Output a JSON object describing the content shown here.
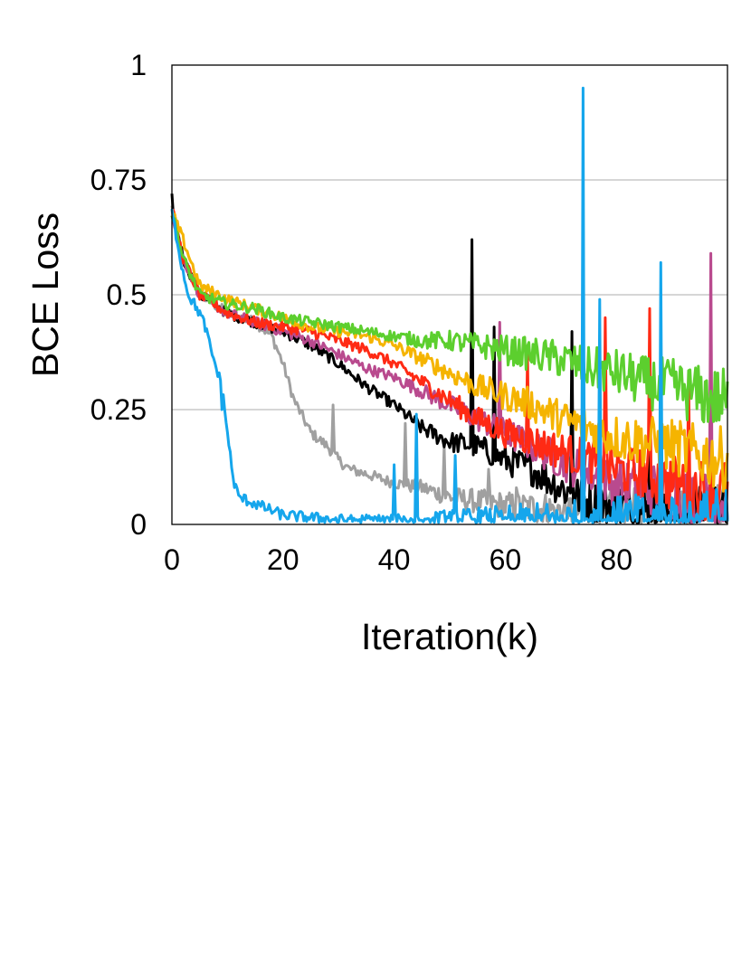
{
  "chart_data": {
    "type": "line",
    "xlabel": "Iteration(k)",
    "ylabel": "BCE Loss",
    "xlim": [
      0,
      100
    ],
    "ylim": [
      0,
      1
    ],
    "xticks": [
      "0",
      "20",
      "40",
      "60",
      "80"
    ],
    "xtick_values": [
      0,
      20,
      40,
      60,
      80
    ],
    "yticks": [
      "0",
      "0.25",
      "0.5",
      "0.75",
      "1"
    ],
    "ytick_values": [
      0,
      0.25,
      0.5,
      0.75,
      1
    ],
    "grid": "horizontal",
    "legend": "none",
    "series": [
      {
        "color": "#a0a0a0",
        "x": [
          0,
          2,
          5,
          10,
          15,
          18,
          20,
          22,
          25,
          28,
          30,
          32,
          35,
          40,
          45,
          50,
          55,
          60,
          65,
          70,
          75,
          80,
          85,
          90,
          95,
          100
        ],
        "y": [
          0.69,
          0.58,
          0.5,
          0.46,
          0.44,
          0.41,
          0.35,
          0.27,
          0.2,
          0.17,
          0.14,
          0.12,
          0.11,
          0.09,
          0.08,
          0.06,
          0.05,
          0.04,
          0.035,
          0.03,
          0.03,
          0.025,
          0.025,
          0.02,
          0.02,
          0.02
        ],
        "spikes": [
          [
            29,
            0.26
          ],
          [
            42,
            0.22
          ],
          [
            49,
            0.17
          ],
          [
            57,
            0.12
          ],
          [
            62,
            0.08
          ]
        ]
      },
      {
        "color": "#000000",
        "x": [
          0,
          2,
          5,
          10,
          15,
          20,
          25,
          30,
          35,
          40,
          45,
          50,
          55,
          60,
          65,
          70,
          75,
          80,
          85,
          90,
          95,
          100
        ],
        "y": [
          0.7,
          0.58,
          0.5,
          0.46,
          0.44,
          0.42,
          0.39,
          0.35,
          0.3,
          0.26,
          0.21,
          0.18,
          0.17,
          0.14,
          0.12,
          0.08,
          0.05,
          0.04,
          0.03,
          0.02,
          0.02,
          0.02
        ],
        "spikes": [
          [
            0,
            0.72
          ],
          [
            54,
            0.62
          ],
          [
            58,
            0.43
          ],
          [
            72,
            0.42
          ],
          [
            86,
            0.3
          ]
        ]
      },
      {
        "color": "#b94a8e",
        "x": [
          0,
          2,
          5,
          10,
          15,
          20,
          25,
          30,
          35,
          40,
          45,
          50,
          55,
          60,
          65,
          70,
          75,
          80,
          85,
          90,
          95,
          100
        ],
        "y": [
          0.68,
          0.58,
          0.5,
          0.46,
          0.44,
          0.42,
          0.4,
          0.37,
          0.34,
          0.32,
          0.29,
          0.26,
          0.23,
          0.2,
          0.17,
          0.14,
          0.11,
          0.09,
          0.08,
          0.07,
          0.06,
          0.05
        ],
        "spikes": [
          [
            59,
            0.44
          ],
          [
            77,
            0.3
          ],
          [
            97,
            0.59
          ]
        ]
      },
      {
        "color": "#ff2a14",
        "x": [
          0,
          2,
          5,
          10,
          15,
          20,
          25,
          30,
          35,
          40,
          45,
          50,
          55,
          60,
          65,
          70,
          75,
          80,
          85,
          90,
          95,
          100
        ],
        "y": [
          0.69,
          0.58,
          0.5,
          0.46,
          0.44,
          0.43,
          0.42,
          0.4,
          0.38,
          0.35,
          0.31,
          0.27,
          0.23,
          0.2,
          0.18,
          0.16,
          0.14,
          0.12,
          0.11,
          0.09,
          0.08,
          0.07
        ],
        "spikes": [
          [
            64,
            0.37
          ],
          [
            78,
            0.45
          ],
          [
            86,
            0.47
          ],
          [
            93,
            0.33
          ]
        ]
      },
      {
        "color": "#f5b400",
        "x": [
          0,
          2,
          5,
          10,
          15,
          20,
          25,
          30,
          35,
          40,
          45,
          50,
          55,
          60,
          65,
          70,
          75,
          80,
          85,
          90,
          95,
          100
        ],
        "y": [
          0.68,
          0.62,
          0.52,
          0.49,
          0.47,
          0.45,
          0.43,
          0.42,
          0.41,
          0.39,
          0.36,
          0.33,
          0.3,
          0.28,
          0.26,
          0.23,
          0.21,
          0.19,
          0.18,
          0.17,
          0.15,
          0.14
        ],
        "spikes": []
      },
      {
        "color": "#5ccf2e",
        "x": [
          0,
          2,
          5,
          10,
          15,
          20,
          25,
          30,
          35,
          40,
          45,
          50,
          55,
          60,
          65,
          70,
          75,
          80,
          85,
          90,
          95,
          100
        ],
        "y": [
          0.68,
          0.58,
          0.5,
          0.48,
          0.47,
          0.45,
          0.44,
          0.43,
          0.42,
          0.41,
          0.4,
          0.4,
          0.39,
          0.38,
          0.37,
          0.36,
          0.34,
          0.33,
          0.31,
          0.3,
          0.28,
          0.27
        ],
        "spikes": []
      },
      {
        "color": "#15a6ec",
        "x": [
          0,
          2,
          3,
          5,
          6,
          7,
          8,
          9,
          10,
          11,
          12,
          14,
          16,
          18,
          20,
          25,
          30,
          35,
          40,
          45,
          50,
          55,
          60,
          65,
          70,
          75,
          80,
          85,
          90,
          95,
          100
        ],
        "y": [
          0.68,
          0.55,
          0.5,
          0.46,
          0.43,
          0.38,
          0.34,
          0.3,
          0.2,
          0.1,
          0.06,
          0.05,
          0.04,
          0.03,
          0.02,
          0.015,
          0.01,
          0.01,
          0.01,
          0.01,
          0.01,
          0.01,
          0.01,
          0.01,
          0.01,
          0.01,
          0.01,
          0.01,
          0.01,
          0.01,
          0.01
        ],
        "spikes": [
          [
            9,
            0.25
          ],
          [
            40,
            0.13
          ],
          [
            44,
            0.24
          ],
          [
            51,
            0.15
          ],
          [
            74,
            0.95
          ],
          [
            77,
            0.49
          ],
          [
            88,
            0.57
          ]
        ]
      }
    ]
  }
}
